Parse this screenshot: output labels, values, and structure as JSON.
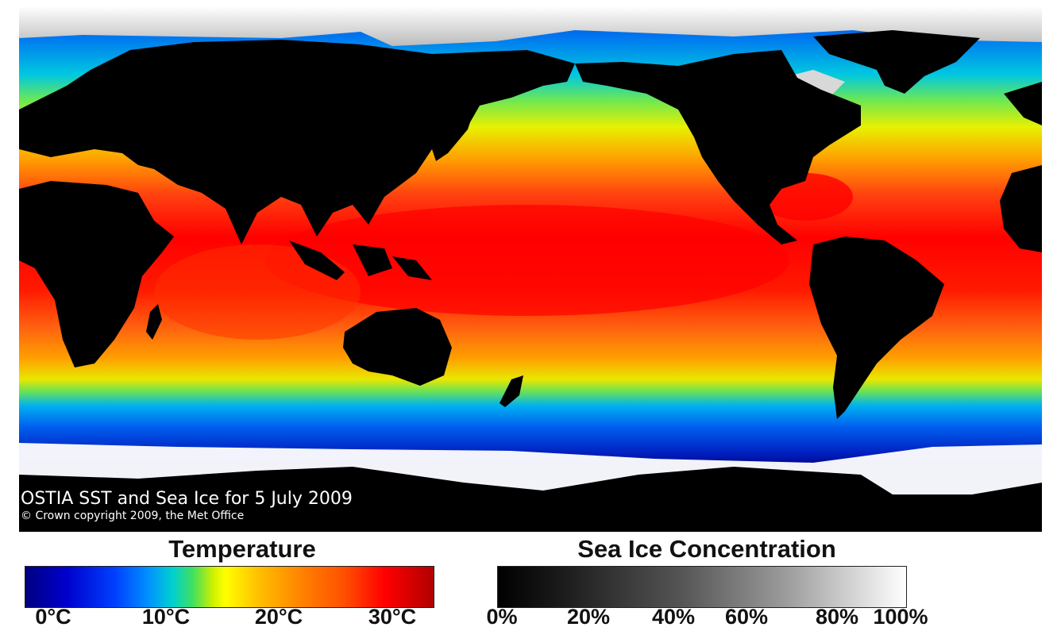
{
  "map": {
    "caption_title": "OSTIA SST and Sea Ice for  5 July 2009",
    "caption_copyright": "© Crown copyright 2009, the Met Office"
  },
  "legend": {
    "temperature": {
      "title": "Temperature",
      "ticks": [
        "0°C",
        "10°C",
        "20°C",
        "30°C"
      ]
    },
    "sea_ice": {
      "title": "Sea Ice Concentration",
      "ticks": [
        "0%",
        "20%",
        "40%",
        "60%",
        "80%",
        "100%"
      ]
    }
  },
  "colors": {
    "land": "#000000",
    "ice": "#ffffff",
    "sst_cold": "#0000cc",
    "sst_mid": "#ffff00",
    "sst_warm": "#ff0000"
  }
}
